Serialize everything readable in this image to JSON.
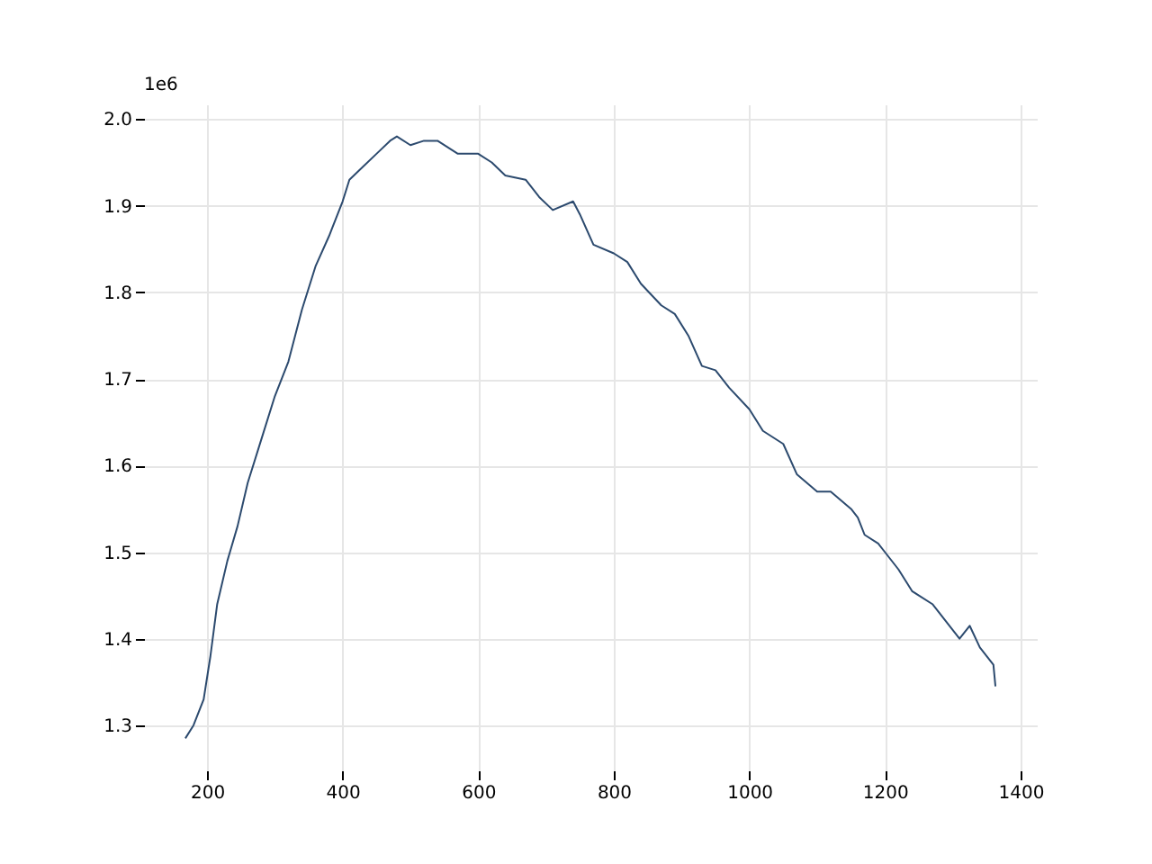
{
  "chart_data": {
    "type": "line",
    "x": [
      168,
      180,
      195,
      205,
      215,
      230,
      245,
      260,
      280,
      300,
      320,
      340,
      360,
      380,
      400,
      410,
      430,
      450,
      470,
      480,
      500,
      520,
      540,
      570,
      600,
      620,
      640,
      670,
      690,
      710,
      740,
      750,
      770,
      800,
      820,
      840,
      870,
      890,
      910,
      930,
      950,
      970,
      1000,
      1020,
      1050,
      1070,
      1100,
      1120,
      1150,
      1160,
      1170,
      1190,
      1200,
      1220,
      1240,
      1270,
      1290,
      1310,
      1325,
      1340,
      1360,
      1363
    ],
    "series": [
      {
        "color": "#2c4a6e",
        "values": [
          1.285,
          1.3,
          1.33,
          1.38,
          1.44,
          1.49,
          1.53,
          1.58,
          1.63,
          1.68,
          1.72,
          1.78,
          1.83,
          1.865,
          1.905,
          1.93,
          1.945,
          1.96,
          1.975,
          1.98,
          1.97,
          1.975,
          1.975,
          1.96,
          1.96,
          1.95,
          1.935,
          1.93,
          1.91,
          1.895,
          1.905,
          1.89,
          1.855,
          1.845,
          1.835,
          1.81,
          1.785,
          1.775,
          1.75,
          1.715,
          1.71,
          1.69,
          1.665,
          1.64,
          1.625,
          1.59,
          1.57,
          1.57,
          1.55,
          1.54,
          1.52,
          1.51,
          1.5,
          1.48,
          1.455,
          1.44,
          1.42,
          1.4,
          1.415,
          1.39,
          1.37,
          1.345
        ]
      }
    ],
    "xlim": [
      107,
      1424
    ],
    "xticks": [
      200,
      400,
      600,
      800,
      1000,
      1200,
      1400
    ],
    "ylim": [
      1.248,
      2.017
    ],
    "yticks": [
      1.3,
      1.4,
      1.5,
      1.6,
      1.7,
      1.8,
      1.9,
      {
        "value": 2,
        "label": "2.0"
      }
    ],
    "grid": true,
    "annotations": [
      "1e6"
    ]
  }
}
